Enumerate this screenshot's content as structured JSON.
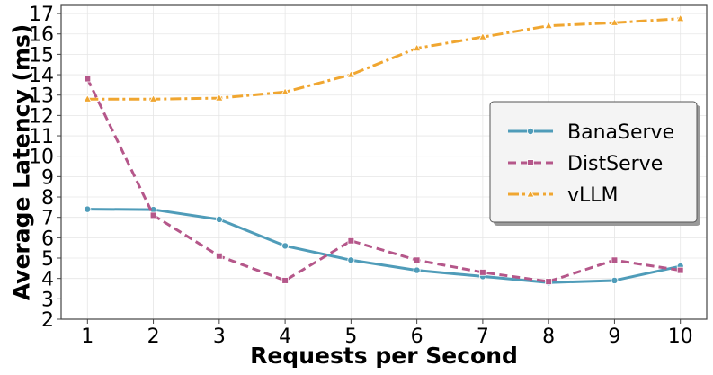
{
  "chart_data": {
    "type": "line",
    "title": "",
    "xlabel": "Requests per Second",
    "ylabel": "Average Latency (ms)",
    "x": [
      1,
      2,
      3,
      4,
      5,
      6,
      7,
      8,
      9,
      10
    ],
    "xlim": [
      0.6,
      10.4
    ],
    "ylim": [
      2,
      17.4
    ],
    "xticks": [
      1,
      2,
      3,
      4,
      5,
      6,
      7,
      8,
      9,
      10
    ],
    "yticks": [
      2,
      3,
      4,
      5,
      6,
      7,
      8,
      9,
      10,
      11,
      12,
      13,
      14,
      15,
      16,
      17
    ],
    "grid": true,
    "legend_position": "center-right",
    "series": [
      {
        "name": "BanaServe",
        "color": "#4f9cb9",
        "line_style": "solid",
        "marker": "circle",
        "values": [
          7.4,
          7.38,
          6.9,
          5.6,
          4.9,
          4.4,
          4.1,
          3.8,
          3.9,
          4.6
        ]
      },
      {
        "name": "DistServe",
        "color": "#b5578a",
        "line_style": "dashed",
        "marker": "square",
        "values": [
          13.8,
          7.1,
          5.1,
          3.9,
          5.85,
          4.9,
          4.3,
          3.85,
          4.9,
          4.4
        ]
      },
      {
        "name": "vLLM",
        "color": "#f0a630",
        "line_style": "dashdot",
        "marker": "triangle",
        "values": [
          12.8,
          12.8,
          12.85,
          13.15,
          14.0,
          15.3,
          15.85,
          16.4,
          16.55,
          16.75
        ]
      }
    ]
  }
}
